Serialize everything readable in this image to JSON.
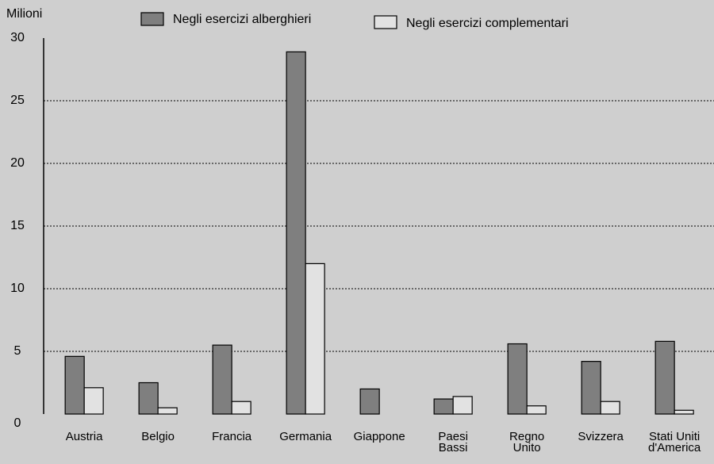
{
  "chart_data": {
    "type": "bar",
    "y_axis_label": "Milioni",
    "categories": [
      "Austria",
      "Belgio",
      "Francia",
      "Germania",
      "Giappone",
      "Paesi\nBassi",
      "Regno\nUnito",
      "Svizzera",
      "Stati Uniti\nd'America"
    ],
    "series": [
      {
        "name": "Negli  esercizi alberghieri",
        "color": "#7f7f7f",
        "values": [
          4.6,
          2.5,
          5.5,
          28.9,
          2.0,
          1.2,
          5.6,
          4.2,
          5.8
        ]
      },
      {
        "name": "Negli  esercizi complementari",
        "color": "#e2e2e2",
        "values": [
          2.1,
          0.5,
          1.0,
          12.0,
          null,
          1.4,
          0.65,
          1.0,
          0.3
        ]
      }
    ],
    "ylim": [
      0,
      30
    ],
    "yticks": [
      0,
      5,
      10,
      15,
      20,
      25,
      30
    ],
    "grid": true,
    "legend": "top"
  }
}
